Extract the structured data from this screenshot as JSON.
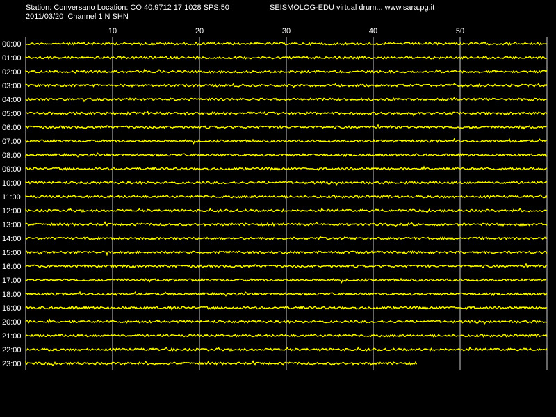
{
  "header": {
    "station_line": "Station: Conversano Location: CO 40.9712 17.1028 SPS:50",
    "app_line": "SEISMOLOG-EDU virtual drum... www.sara.pg.it",
    "date_line": "2011/03/20  Channel 1 N SHN"
  },
  "colors": {
    "background": "#000000",
    "trace": "#ffff00",
    "grid": "#ffffff",
    "text": "#ffffff"
  },
  "chart_data": {
    "type": "line",
    "title": "",
    "xlabel": "",
    "ylabel": "",
    "x_unit": "minutes",
    "xlim": [
      0,
      60
    ],
    "x_ticks": [
      10,
      20,
      30,
      40,
      50
    ],
    "grid": true,
    "rows": [
      {
        "label": "00:00",
        "end_minute": 60
      },
      {
        "label": "01:00",
        "end_minute": 60
      },
      {
        "label": "02:00",
        "end_minute": 60
      },
      {
        "label": "03:00",
        "end_minute": 60
      },
      {
        "label": "04:00",
        "end_minute": 60
      },
      {
        "label": "05:00",
        "end_minute": 60
      },
      {
        "label": "06:00",
        "end_minute": 60
      },
      {
        "label": "07:00",
        "end_minute": 60
      },
      {
        "label": "08:00",
        "end_minute": 60
      },
      {
        "label": "09:00",
        "end_minute": 60
      },
      {
        "label": "10:00",
        "end_minute": 60
      },
      {
        "label": "11:00",
        "end_minute": 60
      },
      {
        "label": "12:00",
        "end_minute": 60
      },
      {
        "label": "13:00",
        "end_minute": 60
      },
      {
        "label": "14:00",
        "end_minute": 60
      },
      {
        "label": "15:00",
        "end_minute": 60
      },
      {
        "label": "16:00",
        "end_minute": 60
      },
      {
        "label": "17:00",
        "end_minute": 60
      },
      {
        "label": "18:00",
        "end_minute": 60
      },
      {
        "label": "19:00",
        "end_minute": 60
      },
      {
        "label": "20:00",
        "end_minute": 60
      },
      {
        "label": "21:00",
        "end_minute": 60
      },
      {
        "label": "22:00",
        "end_minute": 60
      },
      {
        "label": "23:00",
        "end_minute": 45
      }
    ]
  }
}
